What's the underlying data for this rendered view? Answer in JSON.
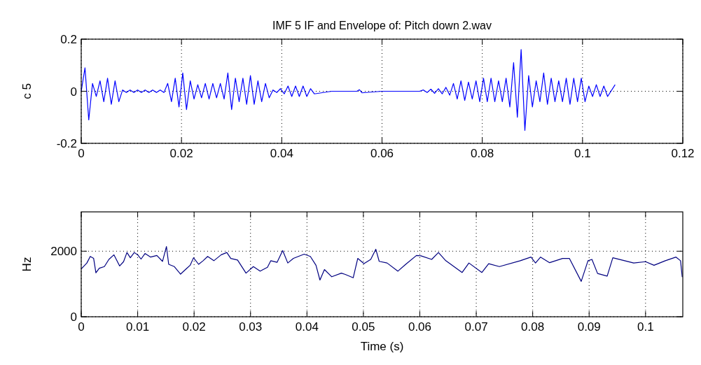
{
  "chart_data": [
    {
      "type": "line",
      "title": "IMF 5 IF and Envelope of: Pitch down 2.wav",
      "ylabel": "c 5",
      "xlim": [
        0,
        0.12
      ],
      "ylim": [
        -0.2,
        0.2
      ],
      "xticks": [
        0,
        0.02,
        0.04,
        0.06,
        0.08,
        0.1,
        0.12
      ],
      "yticks": [
        -0.2,
        0,
        0.2
      ],
      "grid": true,
      "series": [
        {
          "color": "#0000ff",
          "x": [
            0,
            0.00075,
            0.0015,
            0.00225,
            0.003,
            0.00375,
            0.0045,
            0.00525,
            0.006,
            0.00675,
            0.0075,
            0.00825,
            0.009,
            0.00975,
            0.0105,
            0.01125,
            0.012,
            0.01275,
            0.0135,
            0.01425,
            0.015,
            0.01575,
            0.0165,
            0.01725,
            0.018,
            0.01875,
            0.0195,
            0.02025,
            0.021,
            0.02175,
            0.0225,
            0.02325,
            0.024,
            0.02475,
            0.0255,
            0.02625,
            0.027,
            0.02775,
            0.0285,
            0.02925,
            0.03,
            0.03075,
            0.0315,
            0.03225,
            0.033,
            0.03375,
            0.0345,
            0.03525,
            0.036,
            0.03675,
            0.0375,
            0.03825,
            0.039,
            0.03975,
            0.0405,
            0.04125,
            0.042,
            0.04275,
            0.0435,
            0.04425,
            0.045,
            0.04575,
            0.0465,
            0.05,
            0.055,
            0.0555,
            0.056,
            0.06,
            0.065,
            0.0675,
            0.06825,
            0.069,
            0.06975,
            0.0705,
            0.07125,
            0.072,
            0.07275,
            0.0735,
            0.07425,
            0.075,
            0.07575,
            0.0765,
            0.07725,
            0.078,
            0.07875,
            0.0795,
            0.08025,
            0.081,
            0.08175,
            0.0825,
            0.08325,
            0.084,
            0.08475,
            0.0855,
            0.08625,
            0.087,
            0.08775,
            0.0885,
            0.08925,
            0.09,
            0.09075,
            0.0915,
            0.09225,
            0.093,
            0.09375,
            0.0945,
            0.09525,
            0.096,
            0.09675,
            0.0975,
            0.09825,
            0.099,
            0.09975,
            0.1005,
            0.10125,
            0.102,
            0.10275,
            0.1035,
            0.10425,
            0.105,
            0.1065
          ],
          "values": [
            0,
            0.09,
            -0.11,
            0.03,
            -0.02,
            0.04,
            -0.04,
            0.05,
            -0.05,
            0.04,
            -0.04,
            0.005,
            -0.005,
            0.005,
            -0.005,
            0.005,
            -0.005,
            0.005,
            -0.005,
            0.005,
            -0.005,
            0.005,
            -0.005,
            0.03,
            -0.04,
            0.05,
            -0.06,
            0.07,
            -0.07,
            0.04,
            -0.03,
            0.025,
            -0.025,
            0.03,
            -0.03,
            0.03,
            -0.025,
            0.03,
            -0.03,
            0.07,
            -0.07,
            0.05,
            -0.04,
            0.05,
            -0.05,
            0.06,
            -0.05,
            0.04,
            -0.04,
            0.03,
            -0.025,
            0.005,
            -0.005,
            0.01,
            -0.01,
            0.02,
            -0.02,
            0.02,
            -0.02,
            0.02,
            -0.02,
            0.01,
            -0.01,
            0,
            0,
            0.006,
            -0.006,
            0,
            0,
            0,
            0.005,
            -0.005,
            0.008,
            -0.008,
            0.01,
            -0.01,
            0.015,
            -0.015,
            0.03,
            -0.03,
            0.04,
            -0.035,
            0.035,
            -0.03,
            0.04,
            -0.04,
            0.05,
            -0.04,
            0.05,
            -0.04,
            0.04,
            -0.04,
            0.05,
            -0.06,
            0.11,
            -0.1,
            0.16,
            -0.15,
            0.06,
            -0.06,
            0.04,
            -0.04,
            0.07,
            -0.05,
            0.05,
            -0.04,
            0.04,
            -0.04,
            0.05,
            -0.05,
            0.05,
            -0.04,
            0.05,
            -0.04,
            0.02,
            -0.02,
            0.025,
            -0.02,
            0.02,
            -0.02,
            0.025
          ]
        }
      ]
    },
    {
      "type": "line",
      "xlabel": "Time (s)",
      "ylabel": "Hz",
      "xlim": [
        0,
        0.1066
      ],
      "ylim": [
        0,
        3200
      ],
      "xticks": [
        0,
        0.01,
        0.02,
        0.03,
        0.04,
        0.05,
        0.06,
        0.07,
        0.08,
        0.09,
        0.1
      ],
      "yticks": [
        0,
        2000
      ],
      "grid": true,
      "series": [
        {
          "color": "#000080",
          "x": [
            0,
            0.001,
            0.0016,
            0.0022,
            0.0026,
            0.0032,
            0.0041,
            0.0049,
            0.0058,
            0.0068,
            0.0075,
            0.0081,
            0.0087,
            0.0094,
            0.01,
            0.0106,
            0.0113,
            0.0123,
            0.0134,
            0.0144,
            0.0151,
            0.0155,
            0.0165,
            0.0176,
            0.0186,
            0.0193,
            0.0199,
            0.0208,
            0.0216,
            0.0224,
            0.0235,
            0.0248,
            0.0258,
            0.0265,
            0.0277,
            0.0292,
            0.0305,
            0.0317,
            0.033,
            0.0336,
            0.0347,
            0.0357,
            0.0366,
            0.0376,
            0.0395,
            0.0406,
            0.0416,
            0.0423,
            0.0431,
            0.0444,
            0.0461,
            0.0468,
            0.0482,
            0.049,
            0.0501,
            0.0513,
            0.0522,
            0.0528,
            0.0542,
            0.0561,
            0.0575,
            0.0594,
            0.0602,
            0.0621,
            0.0633,
            0.0646,
            0.0675,
            0.0687,
            0.071,
            0.0722,
            0.0741,
            0.0778,
            0.0797,
            0.0805,
            0.0814,
            0.083,
            0.0853,
            0.0865,
            0.0886,
            0.0898,
            0.0905,
            0.0915,
            0.0932,
            0.0942,
            0.0963,
            0.0979,
            0.1,
            0.1015,
            0.1035,
            0.1054,
            0.1062,
            0.1065
          ],
          "values": [
            1460,
            1640,
            1840,
            1780,
            1340,
            1480,
            1530,
            1750,
            1890,
            1550,
            1680,
            1960,
            1800,
            1960,
            1890,
            1760,
            1930,
            1820,
            1870,
            1690,
            2140,
            1600,
            1530,
            1300,
            1460,
            1570,
            1800,
            1600,
            1710,
            1840,
            1710,
            1890,
            1960,
            1780,
            1730,
            1330,
            1530,
            1390,
            1510,
            1710,
            1660,
            2020,
            1640,
            1780,
            1910,
            1840,
            1570,
            1120,
            1440,
            1220,
            1330,
            1290,
            1190,
            1780,
            1620,
            1750,
            2060,
            1690,
            1640,
            1390,
            1600,
            1870,
            1860,
            1750,
            1960,
            1710,
            1350,
            1640,
            1350,
            1620,
            1530,
            1710,
            1820,
            1640,
            1820,
            1650,
            1780,
            1780,
            1080,
            1710,
            1750,
            1320,
            1240,
            1800,
            1710,
            1640,
            1680,
            1570,
            1710,
            1820,
            1710,
            1210
          ]
        }
      ]
    }
  ]
}
